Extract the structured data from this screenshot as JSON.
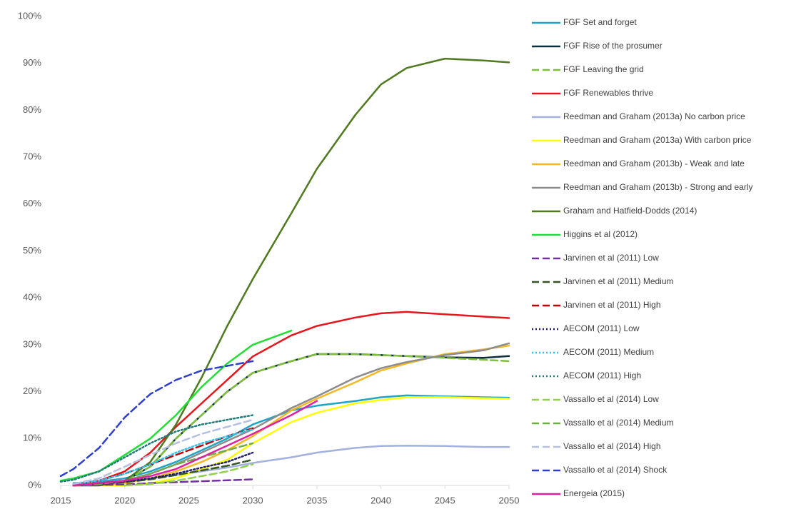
{
  "chart_data": {
    "type": "line",
    "x": [
      2015,
      2016,
      2018,
      2020,
      2022,
      2024,
      2026,
      2028,
      2030,
      2033,
      2035,
      2038,
      2040,
      2042,
      2045,
      2048,
      2050
    ],
    "xlim": [
      2015,
      2050
    ],
    "xticks": [
      2015,
      2020,
      2025,
      2030,
      2035,
      2040,
      2045,
      2050
    ],
    "ylim": [
      0,
      100
    ],
    "yticks": [
      {
        "value": 0,
        "label": "0%"
      },
      {
        "value": 10,
        "label": "10%"
      },
      {
        "value": 20,
        "label": "20%"
      },
      {
        "value": 30,
        "label": "30%"
      },
      {
        "value": 40,
        "label": "40%"
      },
      {
        "value": 50,
        "label": "50%"
      },
      {
        "value": 60,
        "label": "60%"
      },
      {
        "value": 70,
        "label": "70%"
      },
      {
        "value": 80,
        "label": "80%"
      },
      {
        "value": 90,
        "label": "90%"
      },
      {
        "value": 100,
        "label": "100%"
      }
    ],
    "grid": false,
    "legend": "right",
    "series": [
      {
        "name": "FGF Set and forget",
        "color": "#1ea4c8",
        "dash": "solid",
        "values": [
          null,
          0.5,
          0.8,
          1.5,
          3,
          5,
          7.5,
          10,
          13,
          16,
          17,
          18,
          18.8,
          19.2,
          19,
          18.8,
          18.7
        ]
      },
      {
        "name": "FGF Rise of the prosumer",
        "color": "#0f2f3f",
        "dash": "solid",
        "values": [
          null,
          0.3,
          0.5,
          1,
          4,
          10,
          15,
          20,
          24,
          26.5,
          28,
          28,
          27.8,
          27.6,
          27.3,
          27.2,
          27.6
        ]
      },
      {
        "name": "FGF Leaving the grid",
        "color": "#7fbf3a",
        "dash": "dash",
        "values": [
          null,
          0.3,
          0.5,
          1,
          4,
          10,
          15,
          20,
          24,
          26.5,
          28,
          28,
          27.8,
          27.6,
          27.2,
          26.8,
          26.5
        ]
      },
      {
        "name": "FGF Renewables thrive",
        "color": "#e8141c",
        "dash": "solid",
        "values": [
          null,
          0.3,
          1,
          3,
          7,
          12.5,
          17.5,
          22.5,
          27.5,
          32,
          34,
          35.8,
          36.7,
          37,
          36.5,
          36,
          35.7
        ]
      },
      {
        "name": "Reedman and Graham (2013a) No carbon price",
        "color": "#a3b1e0",
        "dash": "solid",
        "values": [
          null,
          0,
          0.3,
          0.8,
          1.5,
          2.2,
          3,
          3.8,
          4.8,
          6,
          7,
          8,
          8.4,
          8.5,
          8.4,
          8.2,
          8.2
        ]
      },
      {
        "name": "Reedman and Graham (2013a) With carbon price",
        "color": "#ffff00",
        "dash": "solid",
        "values": [
          null,
          0,
          0,
          0,
          0.5,
          1.5,
          3.5,
          5.5,
          9,
          13.5,
          15.5,
          17.5,
          18.2,
          18.8,
          18.8,
          18.6,
          18.5
        ]
      },
      {
        "name": "Reedman and Graham (2013b) - Weak and late",
        "color": "#f5b823",
        "dash": "solid",
        "values": [
          null,
          0,
          0,
          0.5,
          1.5,
          3,
          5,
          7.5,
          10.5,
          16,
          18.5,
          22,
          24.5,
          26,
          28,
          29,
          29.8
        ]
      },
      {
        "name": "Reedman and Graham (2013b) - Strong and early",
        "color": "#8c8c8c",
        "dash": "solid",
        "values": [
          null,
          0,
          0.3,
          1,
          2.5,
          4.5,
          7,
          9.5,
          12,
          16.5,
          19,
          23,
          25,
          26.3,
          27.8,
          28.8,
          30.3
        ]
      },
      {
        "name": "Graham and Hatfield-Dodds (2014)",
        "color": "#4f7a1f",
        "dash": "solid",
        "values": [
          null,
          0,
          0,
          1,
          5,
          13,
          23,
          34,
          44,
          58,
          67.5,
          79,
          85.5,
          89,
          91,
          90.6,
          90.2
        ]
      },
      {
        "name": "Higgins et al (2012)",
        "color": "#22dd33",
        "dash": "solid",
        "values": [
          1,
          1.5,
          3,
          6.5,
          10,
          15,
          21,
          26,
          30,
          33,
          null,
          null,
          null,
          null,
          null,
          null,
          null
        ]
      },
      {
        "name": "Jarvinen et al (2011) Low",
        "color": "#7030a0",
        "dash": "dash",
        "values": [
          null,
          0,
          0.1,
          0.2,
          0.5,
          0.7,
          0.9,
          1.1,
          1.3,
          null,
          null,
          null,
          null,
          null,
          null,
          null,
          null
        ]
      },
      {
        "name": "Jarvinen et al (2011) Medium",
        "color": "#375623",
        "dash": "dash",
        "values": [
          null,
          0,
          0.3,
          0.7,
          1.3,
          2.2,
          3.2,
          4.2,
          5.5,
          null,
          null,
          null,
          null,
          null,
          null,
          null,
          null
        ]
      },
      {
        "name": "Jarvinen et al (2011) High",
        "color": "#c00000",
        "dash": "dash",
        "values": [
          null,
          0.3,
          1,
          2.5,
          4.5,
          6.5,
          8.5,
          10.5,
          12.2,
          null,
          null,
          null,
          null,
          null,
          null,
          null,
          null
        ]
      },
      {
        "name": "AECOM (2011) Low",
        "color": "#1f1f6e",
        "dash": "dot",
        "values": [
          null,
          0,
          0.3,
          0.8,
          1.5,
          2.5,
          3.8,
          5,
          7,
          null,
          null,
          null,
          null,
          null,
          null,
          null,
          null
        ]
      },
      {
        "name": "AECOM (2011) Medium",
        "color": "#2ec4f0",
        "dash": "dot",
        "values": [
          null,
          0.3,
          1,
          2.5,
          4.5,
          7,
          9,
          10.5,
          12,
          null,
          null,
          null,
          null,
          null,
          null,
          null,
          null
        ]
      },
      {
        "name": "AECOM (2011) High",
        "color": "#1f7a7a",
        "dash": "dot",
        "values": [
          0.8,
          1.2,
          3,
          6,
          9,
          11.5,
          13,
          14,
          15,
          null,
          null,
          null,
          null,
          null,
          null,
          null,
          null
        ]
      },
      {
        "name": "Vassallo et al (2014) Low",
        "color": "#92d050",
        "dash": "dash",
        "values": [
          null,
          null,
          null,
          0,
          0.3,
          1,
          2,
          3,
          4.5,
          null,
          null,
          null,
          null,
          null,
          null,
          null,
          null
        ]
      },
      {
        "name": "Vassallo et al (2014) Medium",
        "color": "#70ad47",
        "dash": "dash",
        "values": [
          null,
          0,
          0.3,
          1,
          2.5,
          4.5,
          6,
          7.5,
          9,
          null,
          null,
          null,
          null,
          null,
          null,
          null,
          null
        ]
      },
      {
        "name": "Vassallo et al (2014) High",
        "color": "#b4c0e0",
        "dash": "dash",
        "values": [
          null,
          0.3,
          1.5,
          4,
          6.5,
          9,
          11,
          12.5,
          14,
          null,
          null,
          null,
          null,
          null,
          null,
          null,
          null
        ]
      },
      {
        "name": "Vassallo et al (2014) Shock",
        "color": "#2e3fd0",
        "dash": "dash",
        "values": [
          2,
          3.5,
          8,
          14.5,
          19.5,
          22.5,
          24.5,
          25.5,
          26.5,
          null,
          null,
          null,
          null,
          null,
          null,
          null,
          null
        ]
      },
      {
        "name": "Energeia (2015)",
        "color": "#e020a0",
        "dash": "solid",
        "values": [
          null,
          0,
          0.5,
          1,
          2,
          3.5,
          6,
          8.5,
          11,
          15,
          18,
          null,
          null,
          null,
          null,
          null,
          null
        ]
      }
    ]
  }
}
